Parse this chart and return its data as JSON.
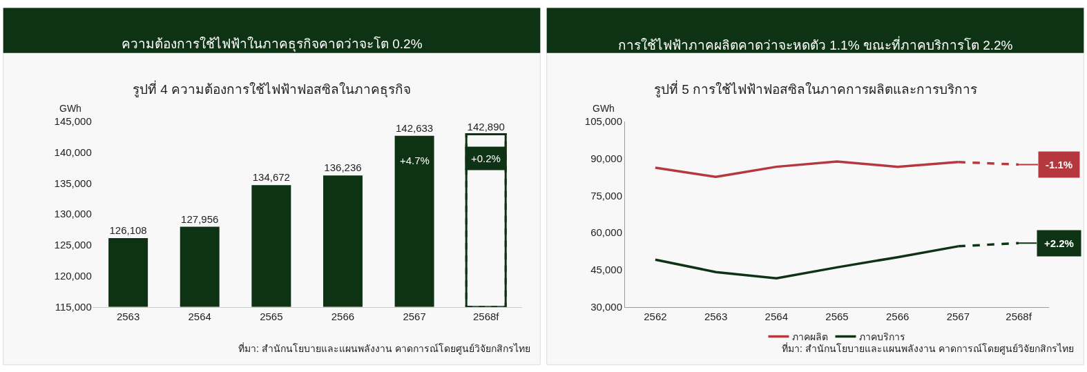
{
  "chart_data": [
    {
      "type": "bar",
      "title": "ความต้องการใช้ไฟฟ้าในภาคธุรกิจคาดว่าจะโต 0.2%",
      "subtitle": "รูปที่ 4 ความต้องการใช้ไฟฟ้าฟอสซิลในภาคธุรกิจ",
      "ylabel": "GWh",
      "categories": [
        "2563",
        "2564",
        "2565",
        "2566",
        "2567",
        "2568f"
      ],
      "series": [
        {
          "color": "#0e3314",
          "values": [
            126108,
            127956,
            134672,
            136236,
            142633,
            null
          ],
          "value_labels": [
            "126,108",
            "127,956",
            "134,672",
            "136,236",
            "142,633",
            null
          ]
        },
        {
          "color": "#0e3314",
          "line_style": "dashed",
          "values": [
            null,
            null,
            null,
            null,
            null,
            142890
          ],
          "value_labels": [
            null,
            null,
            null,
            null,
            null,
            "142,890"
          ]
        }
      ],
      "ylim": [
        115000,
        145000
      ],
      "yticks": [
        {
          "value": 115000,
          "label": "115,000"
        },
        {
          "value": 120000,
          "label": "120,000"
        },
        {
          "value": 125000,
          "label": "125,000"
        },
        {
          "value": 130000,
          "label": "130,000"
        },
        {
          "value": 135000,
          "label": "135,000"
        },
        {
          "value": 140000,
          "label": "140,000"
        },
        {
          "value": 145000,
          "label": "145,000"
        }
      ],
      "grid": false,
      "legend": false,
      "annotations": [
        {
          "text": "+4.7%",
          "x": "2567",
          "y": 138650
        },
        "+0.2%",
        "ที่มา: สำนักนโยบายและแผนพลังงาน คาดการณ์โดยศูนย์วิจัยกสิกรไทย"
      ]
    },
    {
      "type": "line",
      "title": "การใช้ไฟฟ้าภาคผลิตคาดว่าจะหดตัว 1.1% ขณะที่ภาคบริการโต 2.2%",
      "subtitle": "รูปที่ 5 การใช้ไฟฟ้าฟอสซิลในภาคการผลิตและการบริการ",
      "ylabel": "GWh",
      "categories": [
        "2562",
        "2563",
        "2564",
        "2565",
        "2566",
        "2567",
        "2568f"
      ],
      "series": [
        {
          "name": "ภาคผลิต",
          "color": "#b5383f",
          "values": [
            86200,
            82500,
            86600,
            88700,
            86600,
            88500,
            null
          ]
        },
        {
          "name": "ภาคบริการ",
          "color": "#0e3314",
          "values": [
            49100,
            44100,
            41600,
            46000,
            50100,
            54500,
            null
          ]
        },
        {
          "color": "#b5383f",
          "line_style": "dashed",
          "values": [
            null,
            null,
            null,
            null,
            null,
            88500,
            87500
          ]
        },
        {
          "color": "#0e3314",
          "line_style": "dashed",
          "values": [
            null,
            null,
            null,
            null,
            null,
            54500,
            55800
          ]
        }
      ],
      "ylim": [
        30000,
        105000
      ],
      "yticks": [
        {
          "value": 30000,
          "label": "30,000"
        },
        {
          "value": 45000,
          "label": "45,000"
        },
        {
          "value": 60000,
          "label": "60,000"
        },
        {
          "value": 75000,
          "label": "75,000"
        },
        {
          "value": 90000,
          "label": "90,000"
        },
        {
          "value": 105000,
          "label": "105,000"
        }
      ],
      "grid": false,
      "legend": "bottom",
      "marker": "none",
      "annotations": [
        {
          "text": "-1.1%",
          "x": "2568f",
          "y": 87500
        },
        {
          "text": "+2.2%",
          "x": "2568f",
          "y": 55800
        },
        "ที่มา: สำนักนโยบายและแผนพลังงาน คาดการณ์โดยศูนย์วิจัยกสิกรไทย"
      ]
    }
  ]
}
